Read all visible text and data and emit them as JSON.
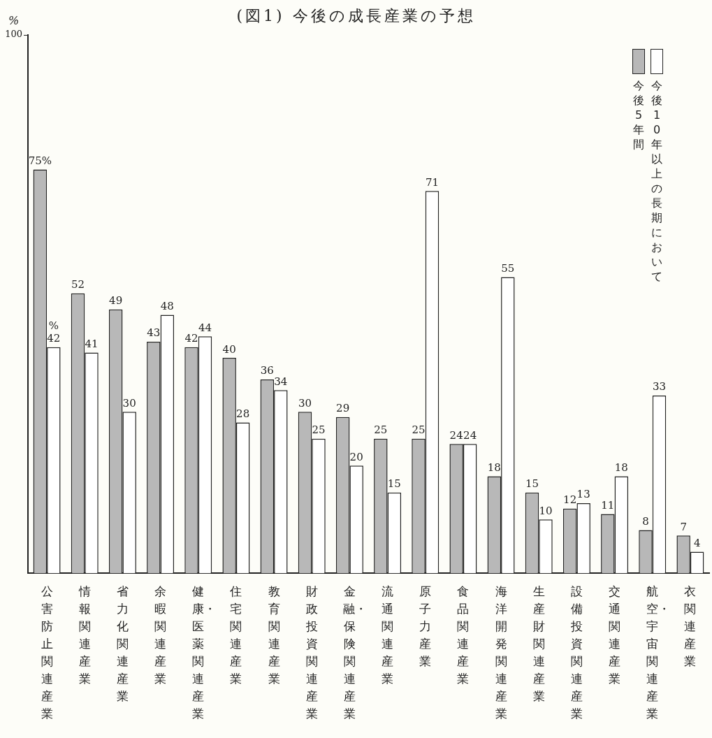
{
  "chart_data": {
    "type": "bar",
    "title": "(図1) 今後の成長産業の予想",
    "ylabel": "%",
    "categories": [
      "公害防止関連産業",
      "情報関連産業",
      "省力化関連産業",
      "余暇関連産業",
      "健康・医薬関連産業",
      "住宅関連産業",
      "教育関連産業",
      "財政投資関連産業",
      "金融・保険関連産業",
      "流通関連産業",
      "原子力産業",
      "食品関連産業",
      "海洋開発関連産業",
      "生産財関連産業",
      "設備投資関連産業",
      "交通関連産業",
      "航空・宇宙関連産業",
      "衣関連産業"
    ],
    "series": [
      {
        "name": "今後5年間",
        "color": "#b8b8b8",
        "values": [
          75,
          52,
          49,
          43,
          42,
          40,
          36,
          30,
          29,
          25,
          25,
          24,
          18,
          15,
          12,
          11,
          8,
          7
        ],
        "value_labels": [
          "75%",
          "52",
          "49",
          "43",
          "42",
          "40",
          "36",
          "30",
          "29",
          "25",
          "25",
          "24",
          "18",
          "15",
          "12",
          "11",
          "8",
          "7"
        ]
      },
      {
        "name": "今後10年以上の長期において",
        "color": "#ffffff",
        "values": [
          42,
          41,
          30,
          48,
          44,
          28,
          34,
          25,
          20,
          15,
          71,
          24,
          55,
          10,
          13,
          18,
          33,
          4
        ],
        "value_labels": [
          "42",
          "41",
          "30",
          "48",
          "44",
          "28",
          "34",
          "25",
          "20",
          "15",
          "71",
          "24",
          "55",
          "10",
          "13",
          "18",
          "33",
          "4"
        ]
      }
    ],
    "annotations": [
      {
        "text": "%",
        "x": "公害防止関連産業",
        "y": 42
      }
    ],
    "ylim": [
      0,
      100
    ],
    "yticks": [
      100
    ],
    "grid": false,
    "legend": "top right"
  }
}
